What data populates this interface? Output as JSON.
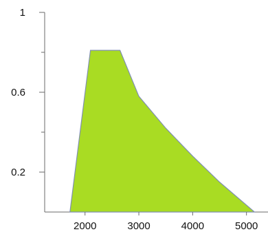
{
  "chart_data": {
    "type": "area",
    "title": "",
    "xlabel": "",
    "ylabel": "",
    "xlim": [
      1250,
      5400
    ],
    "ylim": [
      0,
      1
    ],
    "x_ticks": [
      2000,
      3000,
      4000,
      5000
    ],
    "x_tick_labels": [
      "2000",
      "3000",
      "4000",
      "5000"
    ],
    "y_ticks": [
      1,
      0.6,
      0.2
    ],
    "y_tick_labels": [
      "1",
      "0.6",
      "0.2"
    ],
    "y_minor_ticks": [
      0.8,
      0.4
    ],
    "grid": false,
    "legend": "none",
    "series": [
      {
        "x": [
          1720,
          2100,
          2650,
          3000,
          3500,
          4000,
          4500,
          5150
        ],
        "y": [
          0,
          0.81,
          0.81,
          0.58,
          0.42,
          0.28,
          0.15,
          0
        ]
      }
    ],
    "colors": {
      "fill": "#a9dc23",
      "outline": "#7f8fb0",
      "axis": "#6a6a6a"
    }
  }
}
